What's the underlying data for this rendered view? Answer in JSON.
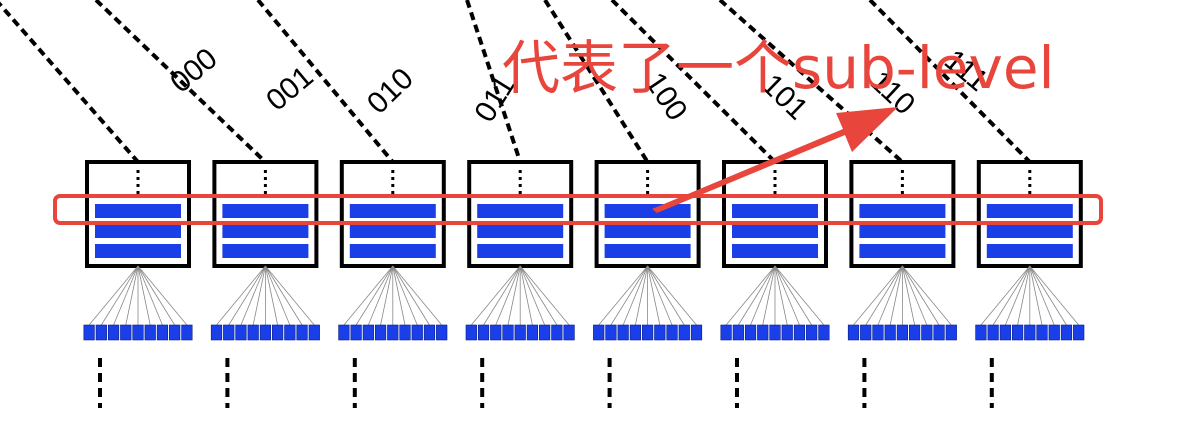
{
  "diagram": {
    "branch_labels": [
      "000",
      "001",
      "010",
      "011",
      "100",
      "101",
      "110",
      "111"
    ],
    "annotation_text": "代表了一个sub-level",
    "colors": {
      "block_fill": "#1a3ee8",
      "annotation": "#e8453c",
      "line": "#000000",
      "fan_line": "#888888"
    }
  }
}
